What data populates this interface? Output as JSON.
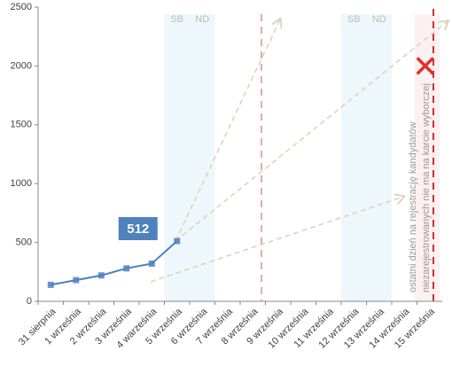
{
  "chart_data": {
    "type": "line",
    "categories": [
      "31 sierpnia",
      "1 września",
      "2 września",
      "3 września",
      "4 warześnia",
      "5 września",
      "6 września",
      "7 września",
      "8 września",
      "9 września",
      "10 września",
      "11 września",
      "12 września",
      "13 września",
      "14 września",
      "15 września"
    ],
    "series": [
      {
        "color": "#4f81bd",
        "values": [
          140,
          180,
          220,
          280,
          320,
          512,
          null,
          null,
          null,
          null,
          null,
          null,
          null,
          null,
          null,
          null
        ]
      }
    ],
    "cross": {
      "color": "#e03030",
      "values": [
        null,
        null,
        null,
        null,
        null,
        null,
        null,
        null,
        null,
        null,
        null,
        null,
        null,
        null,
        null,
        2000
      ]
    },
    "bands": [
      {
        "from": "5 września",
        "to": "6 września",
        "labels": [
          "SB",
          "ND"
        ]
      },
      {
        "from": "12 września",
        "to": "13 września",
        "labels": [
          "SB",
          "ND"
        ]
      }
    ],
    "annotation": [
      "ostatni dzień na rejestrację kandydatów",
      "niezarejestrowanych nie ma na karcie wyborczej"
    ],
    "ylim": [
      0,
      2500
    ],
    "yticks": [
      0,
      500,
      1000,
      1500,
      2000,
      2500
    ],
    "grid": false
  }
}
